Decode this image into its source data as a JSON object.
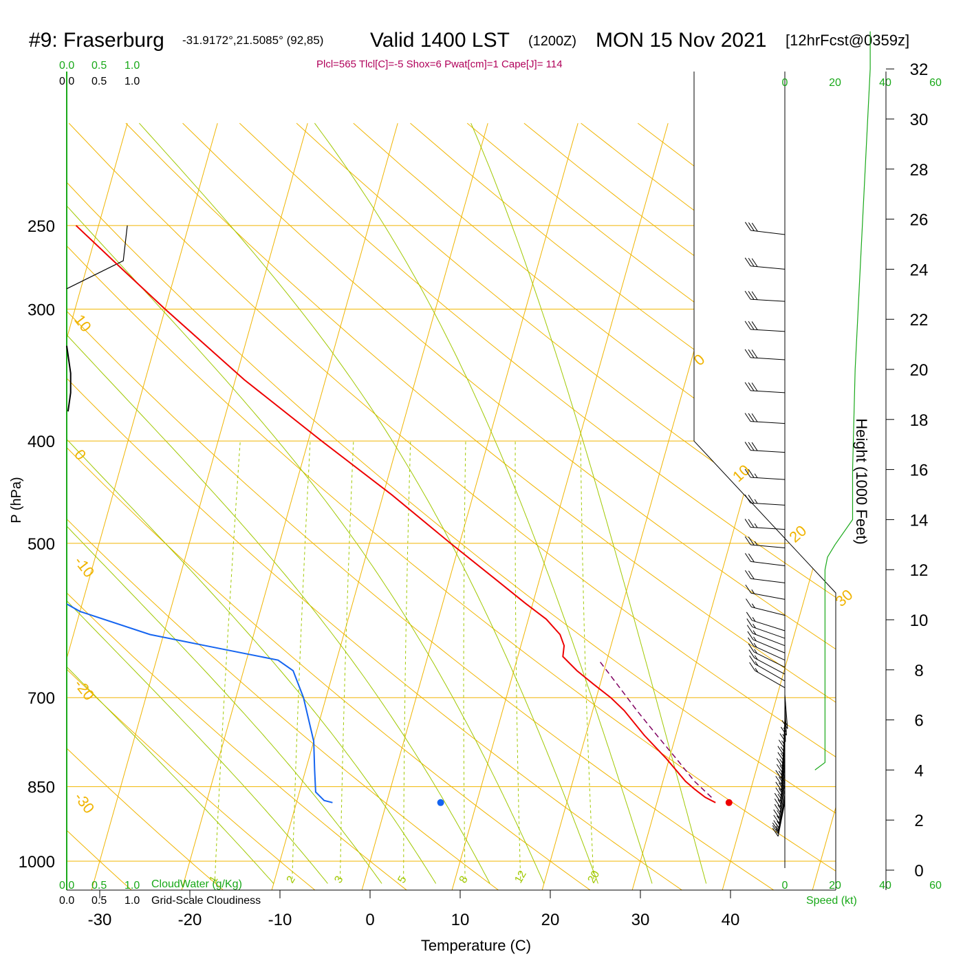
{
  "header": {
    "title_station": "#9: Fraserburg",
    "title_coords": "-31.9172°,21.5085° (92,85)",
    "title_valid": "Valid 1400 LST",
    "title_utc": "(1200Z)",
    "title_date": "MON 15 Nov 2021",
    "title_fcst": "[12hrFcst@0359z]",
    "indices": "Plcl=565 Tlcl[C]=-5 Shox=6 Pwat[cm]=1 Cape[J]= 114"
  },
  "colors": {
    "temperature": "#ee0000",
    "dewpoint": "#1464f0",
    "parcel": "#800060",
    "isotherm": "#f0b400",
    "dry_adiabat": "#f0b400",
    "moist_adiabat": "#a0c800",
    "mixing_ratio": "#a0c800",
    "green_text": "#18a818",
    "index_text": "#b0005a"
  },
  "chart_data": {
    "type": "line",
    "subtype": "skew-T log-P sounding",
    "xlabel": "Temperature (C)",
    "ylabel": "P (hPa)",
    "x_ticks": [
      -30,
      -20,
      -10,
      0,
      10,
      20,
      30,
      40
    ],
    "pressure_ticks": [
      250,
      300,
      400,
      500,
      700,
      850,
      1000
    ],
    "xlim": [
      -33.5,
      46
    ],
    "ylim_hpa": [
      1040,
      250
    ],
    "skew_c_per_decade": 33,
    "isotherm_labels": [
      "10",
      "0",
      "-10",
      "-20",
      "-30",
      "0",
      "10",
      "20",
      "30"
    ],
    "mixing_ratio_labels": [
      "1",
      "2",
      "3",
      "5",
      "8",
      "12",
      "20"
    ],
    "mixing_ratio_values_gkg": [
      1,
      2,
      3,
      5,
      8,
      12,
      20
    ],
    "temperature": {
      "p": [
        880,
        870,
        855,
        840,
        800,
        760,
        720,
        700,
        680,
        660,
        640,
        625,
        610,
        590,
        570,
        540,
        500,
        450,
        400,
        350,
        300,
        275,
        250
      ],
      "t": [
        36.5,
        35.2,
        33.8,
        32.5,
        29.7,
        26.5,
        23.5,
        21.6,
        19.3,
        17.0,
        15.0,
        14.8,
        14.0,
        12.0,
        9.2,
        5.0,
        -1.0,
        -9.0,
        -18.5,
        -29.0,
        -40.0,
        -46.0,
        -52.5
      ]
    },
    "dewpoint": {
      "p": [
        880,
        876,
        860,
        820,
        770,
        700,
        660,
        645,
        625,
        610,
        580,
        540,
        500,
        480,
        450,
        420,
        395,
        360,
        320,
        300,
        290,
        270,
        250
      ],
      "td": [
        -6.0,
        -7.0,
        -8.2,
        -9.0,
        -10.0,
        -12.5,
        -14.5,
        -16.5,
        -25.0,
        -31.5,
        -40.0,
        -47.5,
        -53.5,
        -56.0,
        -55.5,
        -55.5,
        -54.0,
        -56.0,
        -62.0,
        -68.0,
        -71.0,
        -72.0,
        -77.0
      ]
    },
    "parcel": {
      "p": [
        870,
        840,
        800,
        760,
        720,
        680,
        645
      ],
      "t": [
        35.9,
        33.5,
        30.8,
        27.9,
        24.9,
        21.9,
        19.1
      ]
    },
    "surface_temperature": {
      "p": 880,
      "t": 38.0
    },
    "surface_dewpoint": {
      "p": 880,
      "td": 6.0
    },
    "height_axis_label": "Height (1000 Feet)",
    "height_ticks": [
      0,
      2,
      4,
      6,
      8,
      10,
      12,
      14,
      16,
      18,
      20,
      22,
      24,
      26,
      28,
      30,
      32
    ],
    "speed_axis_label": "Speed (kt)",
    "speed_ticks": [
      0,
      20,
      40,
      60
    ],
    "wind_speed_profile": {
      "height_kft": [
        4.0,
        4.3,
        5.0,
        7.0,
        10.0,
        12.0,
        12.5,
        13.0,
        14.0,
        16.0,
        20.0,
        24.0,
        28.0,
        32.0,
        33.5
      ],
      "speed_kt": [
        12,
        16,
        16,
        16,
        16,
        16,
        17,
        20,
        27,
        27,
        28,
        30,
        32,
        34,
        34
      ]
    },
    "wind_speed_envelope": {
      "height_kft": [
        13.0,
        12.5,
        12.0,
        14.0,
        16.0,
        17.5,
        19.5,
        21.5,
        23.5,
        25.5,
        27.5,
        29.5,
        31.5,
        33.0
      ],
      "speed_kt": [
        20,
        15,
        12,
        9,
        6,
        3,
        0,
        -3,
        -6,
        -9,
        -12,
        -15,
        -18,
        -21
      ]
    },
    "cloud_axis_labels": {
      "cloud_water": "CloudWater (g/Kg)",
      "cloudiness": "Grid-Scale Cloudiness",
      "ticks_top_green": [
        "0.0",
        "0.5",
        "1.0"
      ],
      "ticks_top_black": [
        "0.0",
        "0.5",
        "1.0"
      ],
      "ticks_bottom_green": [
        "0.0",
        "0.5",
        "1.0"
      ],
      "ticks_bottom_black": [
        "0.0",
        "0.5",
        "1.0"
      ]
    },
    "cloudiness_profile": {
      "p": [
        250,
        270,
        287
      ],
      "value": [
        0.45,
        0.42,
        0.0
      ]
    },
    "cloud_water_profile": {
      "p": [
        325,
        345,
        360,
        375
      ],
      "value": [
        0.0,
        0.03,
        0.03,
        0.01
      ]
    },
    "wind_barbs": {
      "p": [
        255,
        275,
        295,
        315,
        335,
        360,
        385,
        410,
        435,
        460,
        485,
        505,
        525,
        545,
        565,
        585,
        605,
        615,
        625,
        635,
        645,
        655,
        665,
        675,
        685,
        695,
        705,
        715,
        725,
        735,
        745,
        755,
        765,
        775,
        785,
        795,
        805,
        815,
        825,
        835,
        845,
        855,
        865,
        870,
        875,
        880
      ],
      "speed_kt": [
        30,
        30,
        30,
        30,
        30,
        30,
        30,
        30,
        25,
        25,
        25,
        25,
        20,
        20,
        15,
        15,
        15,
        15,
        15,
        15,
        15,
        15,
        15,
        15,
        15,
        15,
        15,
        15,
        15,
        15,
        15,
        15,
        15,
        15,
        15,
        15,
        15,
        15,
        15,
        15,
        15,
        15,
        15,
        15,
        15,
        15
      ],
      "dir_deg": [
        290,
        285,
        280,
        280,
        280,
        280,
        280,
        280,
        280,
        280,
        280,
        285,
        290,
        290,
        300,
        310,
        320,
        325,
        330,
        335,
        340,
        345,
        350,
        355,
        355,
        0,
        5,
        10,
        15,
        20,
        20,
        25,
        25,
        30,
        30,
        30,
        30,
        35,
        35,
        35,
        40,
        40,
        40,
        45,
        45,
        45
      ]
    }
  }
}
